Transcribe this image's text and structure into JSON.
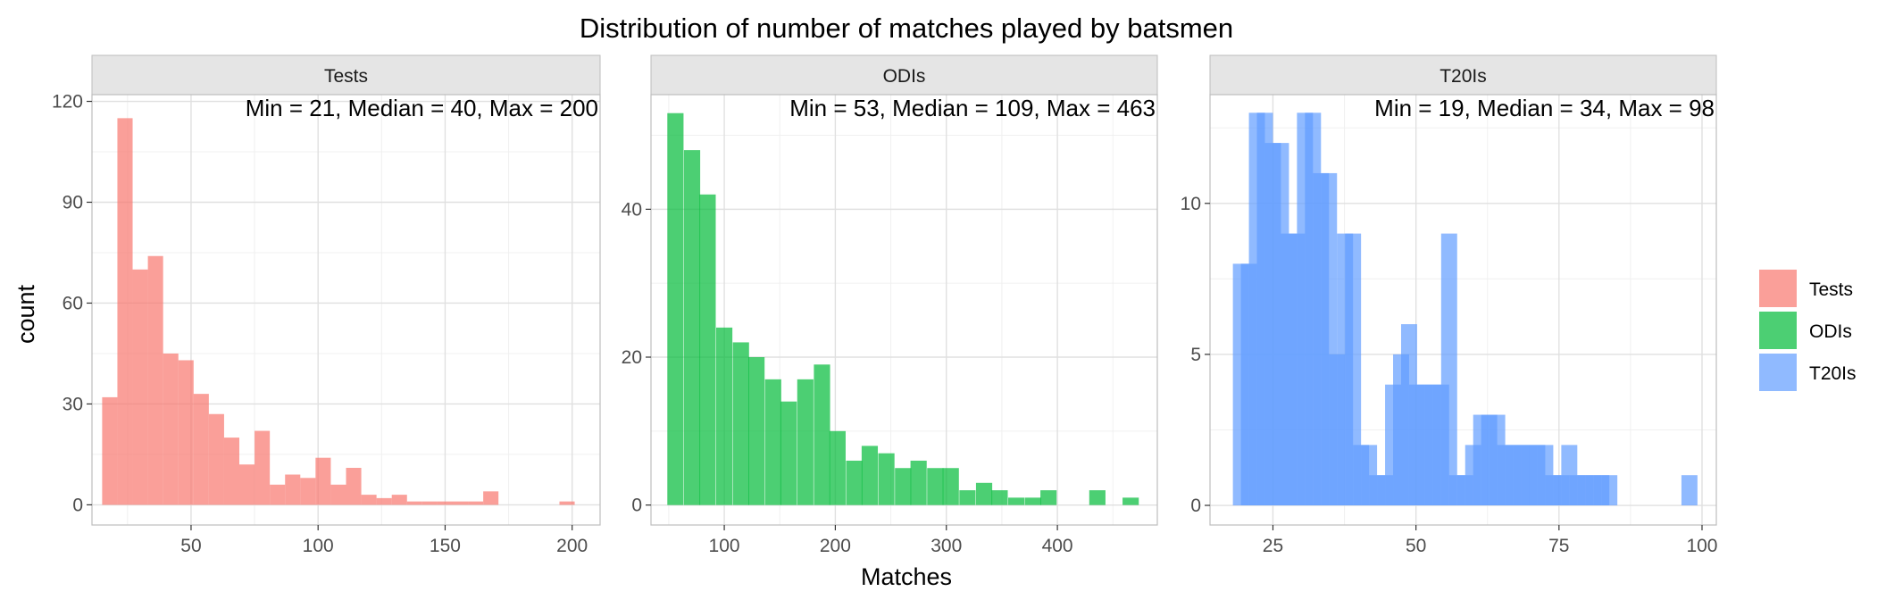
{
  "chart_data": {
    "type": "bar",
    "title": "Distribution of number of matches played by batsmen",
    "xlabel": "Matches",
    "ylabel": "count",
    "grid": true,
    "legend_position": "right",
    "legend": [
      {
        "name": "Tests",
        "color": "#F8766D"
      },
      {
        "name": "ODIs",
        "color": "#00BA38"
      },
      {
        "name": "T20Is",
        "color": "#619CFF"
      }
    ],
    "panels": [
      {
        "name": "Tests",
        "color": "#F8766D",
        "annotation": "Min = 21, Median = 40, Max = 200",
        "xlim": [
          11,
          211
        ],
        "ylim": [
          -6,
          122
        ],
        "xticks": [
          50,
          100,
          150,
          200
        ],
        "xtick_labels": [
          "50",
          "100",
          "150",
          "200"
        ],
        "yticks": [
          0,
          30,
          60,
          90,
          120
        ],
        "ytick_labels": [
          "0",
          "30",
          "60",
          "90",
          "120"
        ],
        "bin_width": 6,
        "bins": [
          [
            18,
            32
          ],
          [
            24,
            115
          ],
          [
            30,
            70
          ],
          [
            36,
            74
          ],
          [
            42,
            45
          ],
          [
            48,
            43
          ],
          [
            54,
            33
          ],
          [
            60,
            27
          ],
          [
            66,
            20
          ],
          [
            72,
            12
          ],
          [
            78,
            22
          ],
          [
            84,
            6
          ],
          [
            90,
            9
          ],
          [
            96,
            8
          ],
          [
            102,
            14
          ],
          [
            108,
            6
          ],
          [
            114,
            11
          ],
          [
            120,
            3
          ],
          [
            126,
            2
          ],
          [
            132,
            3
          ],
          [
            138,
            1
          ],
          [
            144,
            1
          ],
          [
            150,
            1
          ],
          [
            156,
            1
          ],
          [
            162,
            1
          ],
          [
            168,
            4
          ],
          [
            198,
            1
          ]
        ]
      },
      {
        "name": "ODIs",
        "color": "#00BA38",
        "annotation": "Min = 53, Median = 109, Max = 463",
        "xlim": [
          34,
          490
        ],
        "ylim": [
          -2.7,
          55.5
        ],
        "xticks": [
          100,
          200,
          300,
          400
        ],
        "xtick_labels": [
          "100",
          "200",
          "300",
          "400"
        ],
        "yticks": [
          0,
          20,
          40
        ],
        "ytick_labels": [
          "0",
          "20",
          "40"
        ],
        "bin_width": 14.6,
        "bins": [
          [
            56,
            53
          ],
          [
            71,
            48
          ],
          [
            85,
            42
          ],
          [
            100,
            24
          ],
          [
            115,
            22
          ],
          [
            129,
            20
          ],
          [
            144,
            17
          ],
          [
            158,
            14
          ],
          [
            173,
            17
          ],
          [
            188,
            19
          ],
          [
            202,
            10
          ],
          [
            217,
            6
          ],
          [
            231,
            8
          ],
          [
            246,
            7
          ],
          [
            261,
            5
          ],
          [
            275,
            6
          ],
          [
            290,
            5
          ],
          [
            304,
            5
          ],
          [
            319,
            2
          ],
          [
            334,
            3
          ],
          [
            348,
            2
          ],
          [
            363,
            1
          ],
          [
            378,
            1
          ],
          [
            392,
            2
          ],
          [
            436,
            2
          ],
          [
            466,
            1
          ]
        ]
      },
      {
        "name": "T20Is",
        "color": "#619CFF",
        "annotation": "Min = 19, Median = 34, Max = 98",
        "xlim": [
          14,
          102.5
        ],
        "ylim": [
          -0.65,
          13.6
        ],
        "xticks": [
          25,
          50,
          75,
          100
        ],
        "xtick_labels": [
          "25",
          "50",
          "75",
          "100"
        ],
        "yticks": [
          0,
          5,
          10
        ],
        "ytick_labels": [
          "0",
          "5",
          "10"
        ],
        "bin_width": 2.8,
        "bins": [
          [
            19.4,
            8
          ],
          [
            20.8,
            8
          ],
          [
            22.2,
            13
          ],
          [
            23.6,
            13
          ],
          [
            25.0,
            12
          ],
          [
            26.4,
            12
          ],
          [
            27.8,
            9
          ],
          [
            29.2,
            9
          ],
          [
            30.6,
            13
          ],
          [
            32.0,
            13
          ],
          [
            33.4,
            11
          ],
          [
            34.8,
            11
          ],
          [
            36.2,
            5
          ],
          [
            37.6,
            9
          ],
          [
            39.0,
            9
          ],
          [
            40.4,
            2
          ],
          [
            41.8,
            2
          ],
          [
            43.2,
            1
          ],
          [
            44.6,
            1
          ],
          [
            46.0,
            4
          ],
          [
            47.4,
            5
          ],
          [
            48.8,
            6
          ],
          [
            50.2,
            4
          ],
          [
            51.6,
            4
          ],
          [
            53.0,
            4
          ],
          [
            54.4,
            4
          ],
          [
            55.8,
            9
          ],
          [
            57.2,
            1
          ],
          [
            58.6,
            1
          ],
          [
            60.0,
            2
          ],
          [
            61.4,
            3
          ],
          [
            62.8,
            3
          ],
          [
            64.2,
            3
          ],
          [
            65.6,
            2
          ],
          [
            67.0,
            2
          ],
          [
            68.4,
            2
          ],
          [
            69.8,
            2
          ],
          [
            71.2,
            2
          ],
          [
            72.6,
            2
          ],
          [
            74.0,
            1
          ],
          [
            75.4,
            1
          ],
          [
            76.8,
            2
          ],
          [
            78.2,
            1
          ],
          [
            79.6,
            1
          ],
          [
            81.0,
            1
          ],
          [
            82.4,
            1
          ],
          [
            83.8,
            1
          ],
          [
            97.8,
            1
          ]
        ]
      }
    ]
  }
}
